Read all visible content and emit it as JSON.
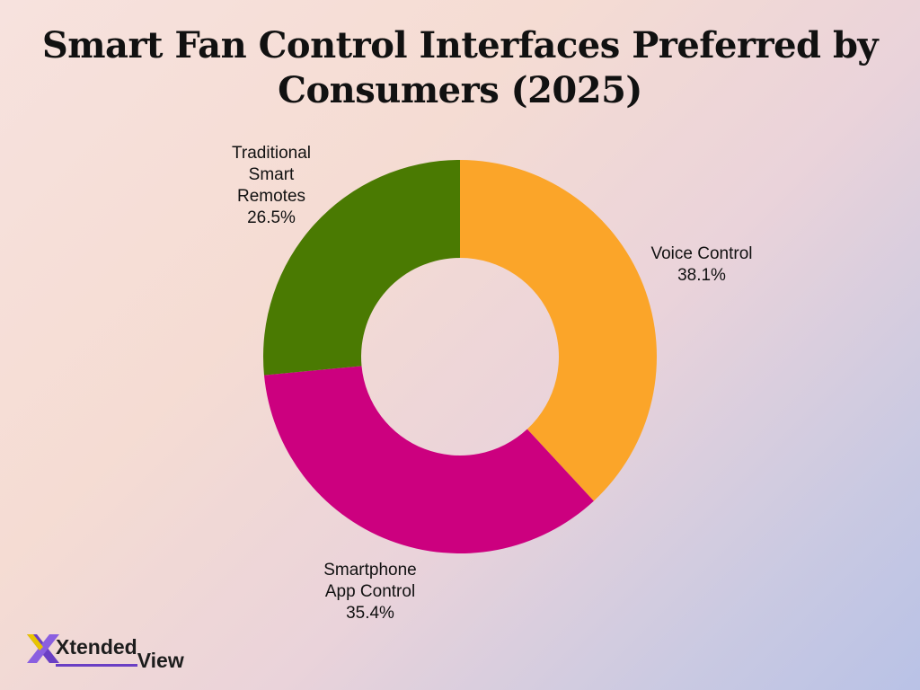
{
  "title": "Smart Fan Control Interfaces Preferred by Consumers (2025)",
  "colors": {
    "voice": "#fba529",
    "smartphone": "#cc007f",
    "remotes": "#4a7a02"
  },
  "chart_data": {
    "type": "pie",
    "variant": "donut",
    "title": "Smart Fan Control Interfaces Preferred by Consumers (2025)",
    "unit": "%",
    "slices": [
      {
        "label_lines": [
          "Voice Control"
        ],
        "value": 38.1,
        "value_label": "38.1%",
        "color": "#fba529"
      },
      {
        "label_lines": [
          "Smartphone",
          "App Control"
        ],
        "value": 35.4,
        "value_label": "35.4%",
        "color": "#cc007f"
      },
      {
        "label_lines": [
          "Traditional",
          "Smart",
          "Remotes"
        ],
        "value": 26.5,
        "value_label": "26.5%",
        "color": "#4a7a02"
      }
    ],
    "legend": "none",
    "start": "top",
    "direction": "clockwise"
  },
  "branding": {
    "logo_part1": "Xtended",
    "logo_part2": "View"
  }
}
